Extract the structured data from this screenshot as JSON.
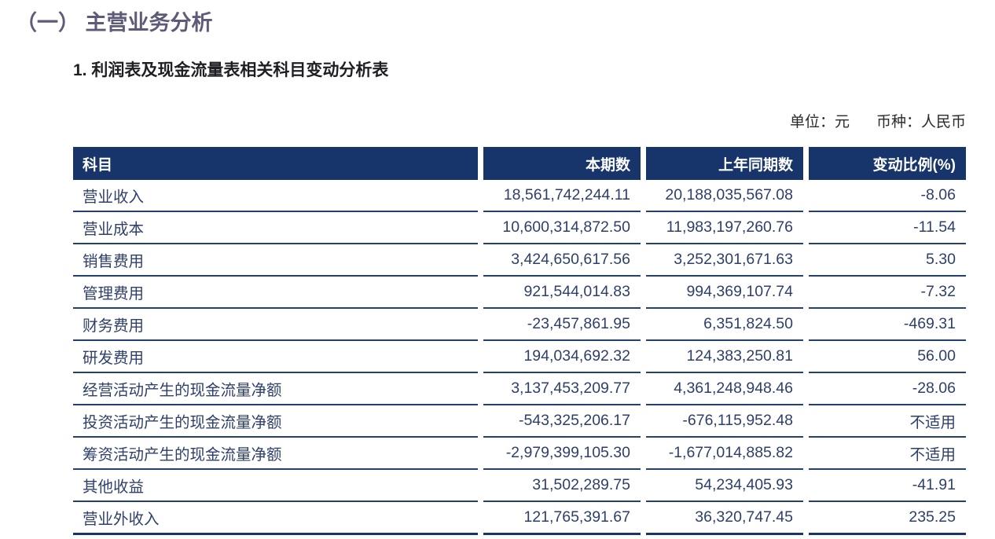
{
  "page": {
    "section_title": "（一） 主营业务分析",
    "subtitle": "1. 利润表及现金流量表相关科目变动分析表",
    "unit_label": "单位：元",
    "currency_label": "币种：人民币"
  },
  "colors": {
    "section_title": "#5e5b79",
    "table_header_bg": "#17356b",
    "table_header_text": "#ffffff",
    "table_body_text": "#2e3f6a",
    "row_divider": "#24406e"
  },
  "table": {
    "columns": [
      "科目",
      "本期数",
      "上年同期数",
      "变动比例(%)"
    ],
    "rows": [
      [
        "营业收入",
        "18,561,742,244.11",
        "20,188,035,567.08",
        "-8.06"
      ],
      [
        "营业成本",
        "10,600,314,872.50",
        "11,983,197,260.76",
        "-11.54"
      ],
      [
        "销售费用",
        "3,424,650,617.56",
        "3,252,301,671.63",
        "5.30"
      ],
      [
        "管理费用",
        "921,544,014.83",
        "994,369,107.74",
        "-7.32"
      ],
      [
        "财务费用",
        "-23,457,861.95",
        "6,351,824.50",
        "-469.31"
      ],
      [
        "研发费用",
        "194,034,692.32",
        "124,383,250.81",
        "56.00"
      ],
      [
        "经营活动产生的现金流量净额",
        "3,137,453,209.77",
        "4,361,248,948.46",
        "-28.06"
      ],
      [
        "投资活动产生的现金流量净额",
        "-543,325,206.17",
        "-676,115,952.48",
        "不适用"
      ],
      [
        "筹资活动产生的现金流量净额",
        "-2,979,399,105.30",
        "-1,677,014,885.82",
        "不适用"
      ],
      [
        "其他收益",
        "31,502,289.75",
        "54,234,405.93",
        "-41.91"
      ],
      [
        "营业外收入",
        "121,765,391.67",
        "36,320,747.45",
        "235.25"
      ]
    ]
  }
}
